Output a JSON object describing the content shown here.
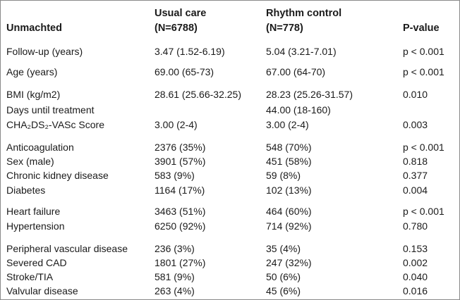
{
  "header": {
    "title": "Unmachted",
    "usual_care_label": "Usual care",
    "usual_care_n": "(N=6788)",
    "rhythm_control_label": "Rhythm control",
    "rhythm_control_n": "(N=778)",
    "pvalue_label": "P-value"
  },
  "rows": [
    {
      "label": "Follow-up (years)",
      "usual": "3.47 (1.52-6.19)",
      "rhythm": "5.04 (3.21-7.01)",
      "p": "p < 0.001"
    },
    {
      "label": "Age (years)",
      "usual": "69.00 (65-73)",
      "rhythm": "67.00 (64-70)",
      "p": "p < 0.001"
    },
    {
      "label": "BMI (kg/m2)",
      "usual": "28.61 (25.66-32.25)",
      "rhythm": "28.23 (25.26-31.57)",
      "p": "0.010"
    },
    {
      "label": "Days until treatment",
      "usual": "",
      "rhythm": "44.00 (18-160)",
      "p": ""
    },
    {
      "label": "CHA₂DS₂-VASc Score",
      "usual": "3.00 (2-4)",
      "rhythm": "3.00 (2-4)",
      "p": "0.003"
    },
    {
      "label": "Anticoagulation",
      "usual": "2376 (35%)",
      "rhythm": "548 (70%)",
      "p": "p < 0.001"
    },
    {
      "label": "Sex (male)",
      "usual": "3901 (57%)",
      "rhythm": "451 (58%)",
      "p": "0.818"
    },
    {
      "label": "Chronic kidney disease",
      "usual": "583 (9%)",
      "rhythm": "59 (8%)",
      "p": "0.377"
    },
    {
      "label": "Diabetes",
      "usual": "1164 (17%)",
      "rhythm": "102 (13%)",
      "p": "0.004"
    },
    {
      "label": "Heart failure",
      "usual": "3463 (51%)",
      "rhythm": "464 (60%)",
      "p": "p < 0.001"
    },
    {
      "label": "Hypertension",
      "usual": "6250 (92%)",
      "rhythm": "714 (92%)",
      "p": "0.780"
    },
    {
      "label": "Peripheral vascular disease",
      "usual": "236 (3%)",
      "rhythm": "35 (4%)",
      "p": "0.153"
    },
    {
      "label": "Severed CAD",
      "usual": "1801 (27%)",
      "rhythm": "247 (32%)",
      "p": "0.002"
    },
    {
      "label": "Stroke/TIA",
      "usual": "581 (9%)",
      "rhythm": "50 (6%)",
      "p": "0.040"
    },
    {
      "label": "Valvular disease",
      "usual": "263 (4%)",
      "rhythm": "45 (6%)",
      "p": "0.016"
    }
  ]
}
